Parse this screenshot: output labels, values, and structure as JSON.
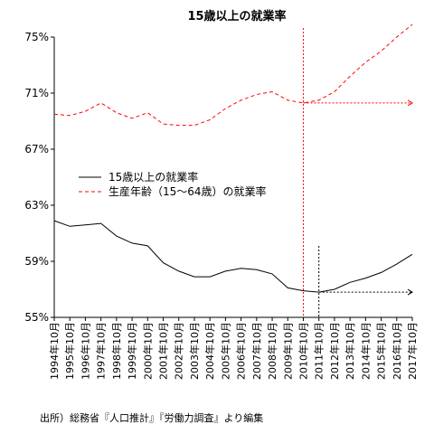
{
  "chart_data": {
    "type": "line",
    "title": "15歳以上の就業率",
    "xlabel": "",
    "ylabel": "",
    "ylim": [
      55,
      75
    ],
    "y_ticks": [
      "55%",
      "59%",
      "63%",
      "67%",
      "71%",
      "75%"
    ],
    "y_tick_values": [
      55,
      59,
      63,
      67,
      71,
      75
    ],
    "x": [
      "1994年10月",
      "1995年10月",
      "1996年10月",
      "1997年10月",
      "1998年10月",
      "1999年10月",
      "2000年10月",
      "2001年10月",
      "2002年10月",
      "2003年10月",
      "2004年10月",
      "2005年10月",
      "2006年10月",
      "2007年10月",
      "2008年10月",
      "2009年10月",
      "2010年10月",
      "2011年10月",
      "2012年10月",
      "2013年10月",
      "2014年10月",
      "2015年10月",
      "2016年10月",
      "2017年10月"
    ],
    "series": [
      {
        "name": "15歳以上の就業率",
        "style": "solid",
        "color": "#000000",
        "values": [
          61.9,
          61.5,
          61.6,
          61.7,
          60.8,
          60.3,
          60.1,
          58.9,
          58.3,
          57.9,
          57.9,
          58.3,
          58.5,
          58.4,
          58.1,
          57.1,
          56.9,
          56.8,
          57.0,
          57.5,
          57.8,
          58.2,
          58.8,
          59.5
        ]
      },
      {
        "name": "生産年齢（15～64歳）の就業率",
        "style": "dashed",
        "color": "#ff0000",
        "values": [
          69.5,
          69.4,
          69.7,
          70.3,
          69.6,
          69.2,
          69.6,
          68.8,
          68.7,
          68.7,
          69.1,
          69.9,
          70.5,
          70.9,
          71.1,
          70.5,
          70.3,
          70.5,
          71.1,
          72.2,
          73.2,
          74.0,
          75.0,
          75.9
        ]
      }
    ],
    "reference_lines": [
      {
        "type": "vertical",
        "x": "2010年10月",
        "color": "#ff0000",
        "style": "dotted"
      },
      {
        "type": "vertical",
        "x": "2011年10月",
        "color": "#000000",
        "style": "dotted"
      },
      {
        "type": "horizontal_arrow",
        "from_x": "2010年10月",
        "to_x": "2017年10月",
        "y": 70.3,
        "color": "#ff0000",
        "style": "dotted"
      },
      {
        "type": "horizontal_arrow",
        "from_x": "2011年10月",
        "to_x": "2017年10月",
        "y": 56.8,
        "color": "#000000",
        "style": "dotted"
      }
    ],
    "legend_position": "left-middle",
    "grid": false
  },
  "source": "出所）総務省『人口推計』『労働力調査』より編集"
}
